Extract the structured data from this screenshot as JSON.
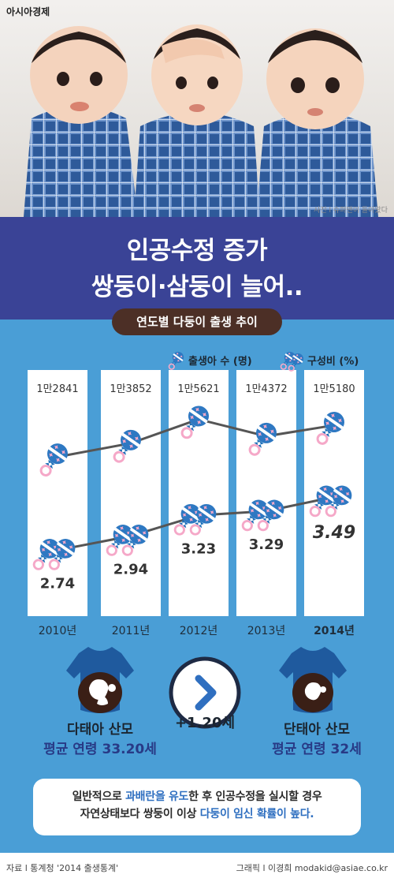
{
  "header": {
    "brand": "아시아경제",
    "photo_credit": "사진 l 슈퍼맨이 돌아왔다"
  },
  "title": {
    "line1": "인공수정 증가",
    "line2": "쌍둥이·삼둥이 늘어..",
    "subtitle": "연도별 다둥이 출생 추이"
  },
  "legend": {
    "births": "출생아 수 (명)",
    "ratio": "구성비 (%)"
  },
  "chart_data": {
    "type": "line",
    "title": "연도별 다둥이 출생 추이",
    "categories": [
      "2010년",
      "2011년",
      "2012년",
      "2013년",
      "2014년"
    ],
    "category_labels": [
      "2010년",
      "2011년",
      "2012년",
      "2013년",
      "2014년"
    ],
    "series": [
      {
        "name": "출생아 수 (명)",
        "values": [
          12841,
          13852,
          15621,
          14372,
          15180
        ],
        "labels": [
          "1만2841",
          "1만3852",
          "1만5621",
          "1만4372",
          "1만5180"
        ]
      },
      {
        "name": "구성비 (%)",
        "values": [
          2.74,
          2.94,
          3.23,
          3.29,
          3.49
        ],
        "labels": [
          "2.74",
          "2.94",
          "3.23",
          "3.29",
          "3.49"
        ]
      }
    ],
    "colors": {
      "background": "#4a9ed6",
      "column": "#ffffff",
      "line": "#555555",
      "rattle": "#2e78c2",
      "star": "#f5a8c8",
      "bow": "#1e6fb8"
    }
  },
  "comparison": {
    "multi": {
      "title": "다태아 산모",
      "age": "평균 연령 33.20세"
    },
    "single": {
      "title": "단태아 산모",
      "age": "평균 연령 32세"
    },
    "difference": "+1.20세"
  },
  "note": {
    "p1": "일반적으로 ",
    "h1": "과배란을 유도",
    "p2": "한 후 인공수정을 실시할 경우",
    "p3": "자연상태보다 쌍둥이 이상 ",
    "h2": "다둥이 임신 확률이 높다."
  },
  "footer": {
    "source": "자료 l 통계청 '2014 출생통계'",
    "graphic": "그래픽 l 이경희 modakid@asiae.co.kr"
  },
  "icons": [
    "rattle-icon",
    "double-rattle-icon",
    "chevron-right-icon",
    "shirt-icon",
    "fetus-icon",
    "photo-icon"
  ]
}
